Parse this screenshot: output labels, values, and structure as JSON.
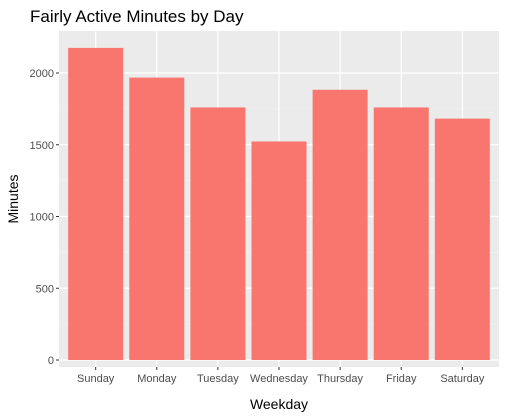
{
  "chart_data": {
    "type": "bar",
    "title": "Fairly Active Minutes by Day",
    "xlabel": "Weekday",
    "ylabel": "Minutes",
    "categories": [
      "Sunday",
      "Monday",
      "Tuesday",
      "Wednesday",
      "Thursday",
      "Friday",
      "Saturday"
    ],
    "values": [
      2175,
      1968,
      1760,
      1523,
      1883,
      1760,
      1682
    ],
    "ylim": [
      0,
      2200
    ],
    "yticks": [
      0,
      500,
      1000,
      1500,
      2000
    ],
    "grid": true,
    "legend": "none",
    "colors": {
      "bar": "#F8766D",
      "panel_background": "#EBEBEB",
      "grid_major": "#FFFFFF",
      "grid_minor": "#F5F5F5",
      "tick_text": "#4D4D4D",
      "tick_mark": "#333333"
    }
  }
}
